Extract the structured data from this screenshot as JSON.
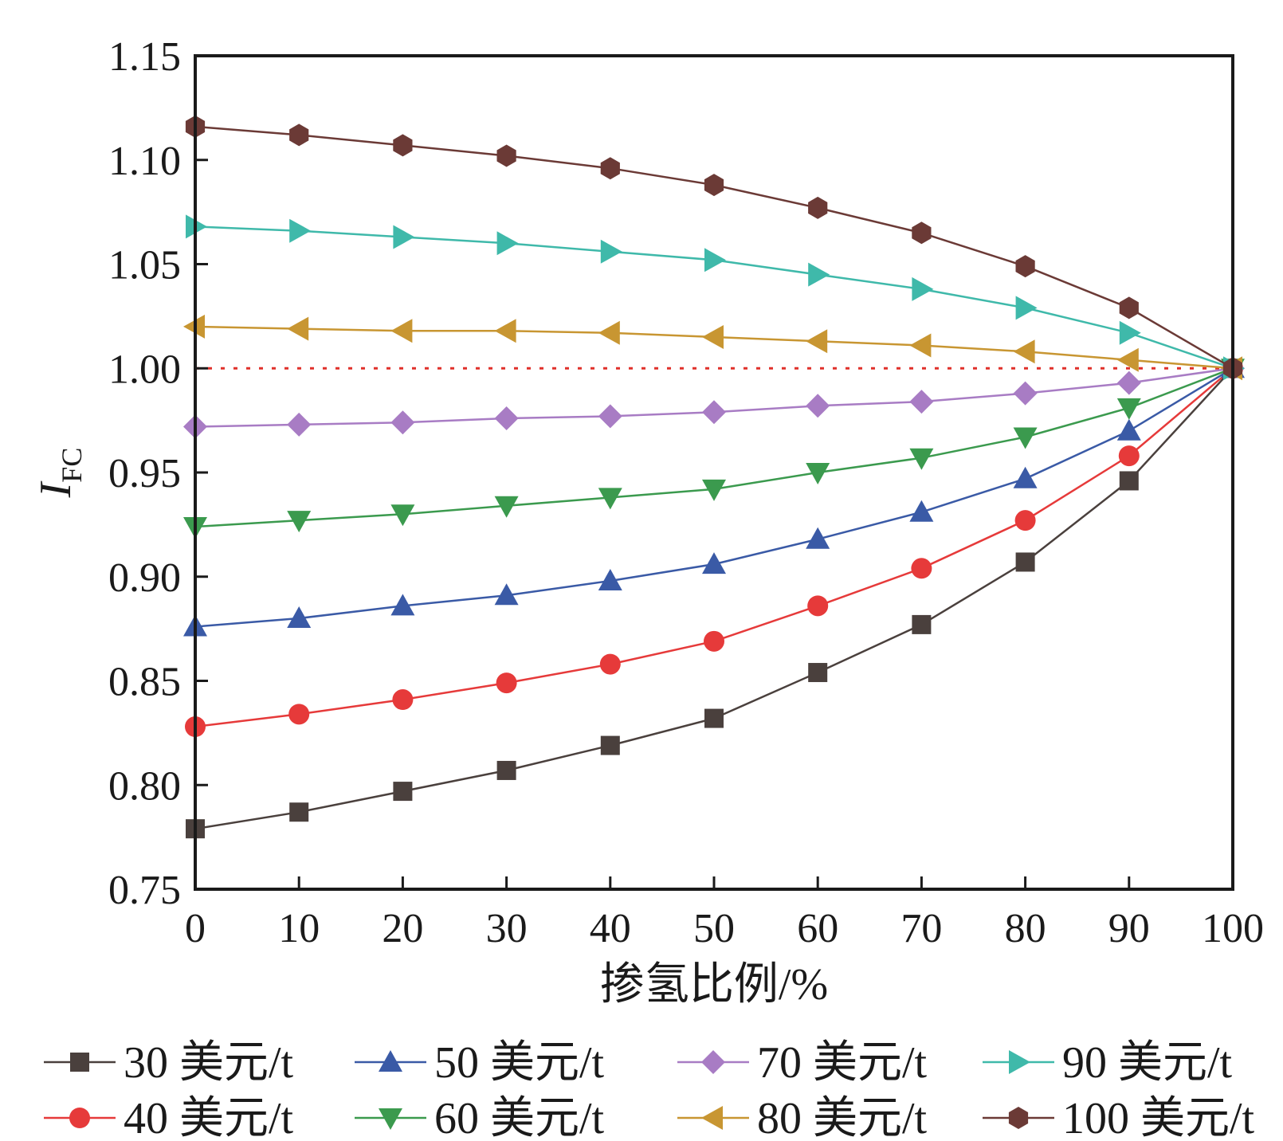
{
  "chart_data": {
    "type": "line",
    "xlabel": "掺氢比例/%",
    "ylabel": "I",
    "ylabel_sub": "FC",
    "xlim": [
      0,
      100
    ],
    "ylim": [
      0.75,
      1.15
    ],
    "xticks": [
      "0",
      "10",
      "20",
      "30",
      "40",
      "50",
      "60",
      "70",
      "80",
      "90",
      "100"
    ],
    "yticks": [
      "0.75",
      "0.80",
      "0.85",
      "0.90",
      "0.95",
      "1.00",
      "1.05",
      "1.10",
      "1.15"
    ],
    "x": [
      0,
      10,
      20,
      30,
      40,
      50,
      60,
      70,
      80,
      90,
      100
    ],
    "reference_line": {
      "y": 1.0,
      "style": "dotted",
      "color": "#e0302a"
    },
    "grid": false,
    "legend_position": "bottom",
    "series": [
      {
        "name": "30 美元/t",
        "color": "#4a403d",
        "marker": "square",
        "values": [
          0.779,
          0.787,
          0.797,
          0.807,
          0.819,
          0.832,
          0.854,
          0.877,
          0.907,
          0.946,
          1.0
        ]
      },
      {
        "name": "40 美元/t",
        "color": "#e63a3a",
        "marker": "circle",
        "values": [
          0.828,
          0.834,
          0.841,
          0.849,
          0.858,
          0.869,
          0.886,
          0.904,
          0.927,
          0.958,
          1.0
        ]
      },
      {
        "name": "50 美元/t",
        "color": "#3a5aa6",
        "marker": "triangle-up",
        "values": [
          0.876,
          0.88,
          0.886,
          0.891,
          0.898,
          0.906,
          0.918,
          0.931,
          0.947,
          0.97,
          1.0
        ]
      },
      {
        "name": "60 美元/t",
        "color": "#3b9a4e",
        "marker": "triangle-down",
        "values": [
          0.924,
          0.927,
          0.93,
          0.934,
          0.938,
          0.942,
          0.95,
          0.957,
          0.967,
          0.981,
          1.0
        ]
      },
      {
        "name": "70 美元/t",
        "color": "#a87cc4",
        "marker": "diamond",
        "values": [
          0.972,
          0.973,
          0.974,
          0.976,
          0.977,
          0.979,
          0.982,
          0.984,
          0.988,
          0.993,
          1.0
        ]
      },
      {
        "name": "80 美元/t",
        "color": "#c89632",
        "marker": "triangle-left",
        "values": [
          1.02,
          1.019,
          1.018,
          1.018,
          1.017,
          1.015,
          1.013,
          1.011,
          1.008,
          1.004,
          1.0
        ]
      },
      {
        "name": "90 美元/t",
        "color": "#3fb9aa",
        "marker": "triangle-right",
        "values": [
          1.068,
          1.066,
          1.063,
          1.06,
          1.056,
          1.052,
          1.045,
          1.038,
          1.029,
          1.017,
          1.0
        ]
      },
      {
        "name": "100 美元/t",
        "color": "#6b3a36",
        "marker": "hexagon",
        "values": [
          1.116,
          1.112,
          1.107,
          1.102,
          1.096,
          1.088,
          1.077,
          1.065,
          1.049,
          1.029,
          1.0
        ]
      }
    ]
  }
}
